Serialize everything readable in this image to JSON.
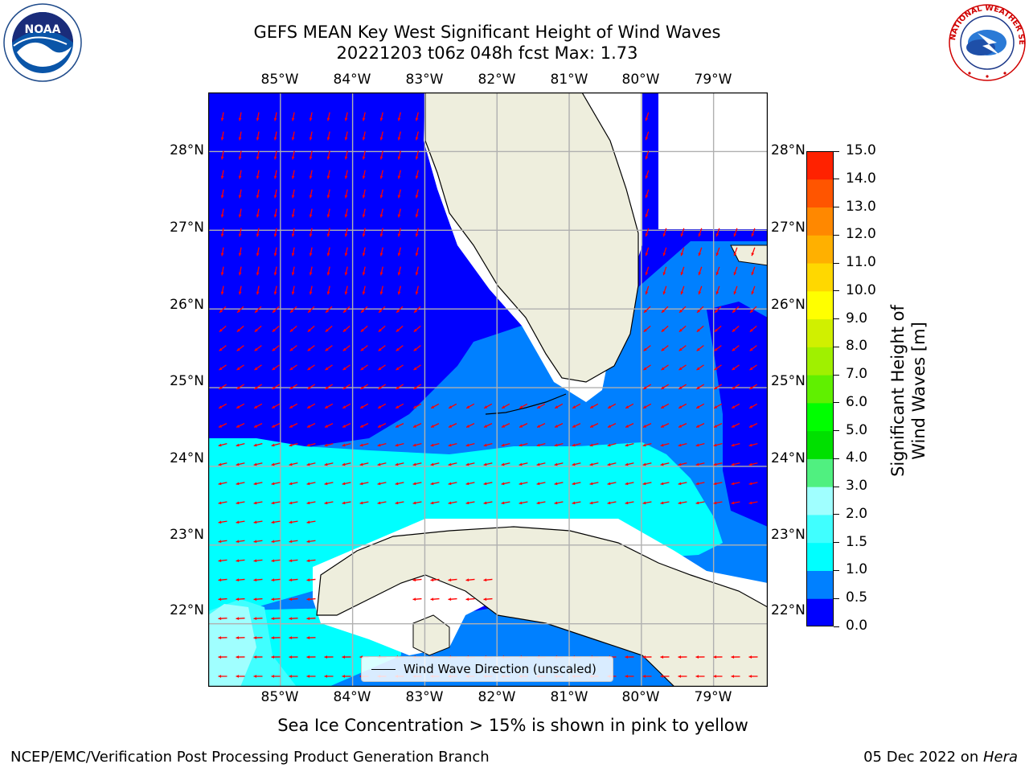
{
  "header": {
    "title_line1": "GEFS MEAN Key West Significant Height of Wind Waves",
    "title_line2": "20221203 t06z 048h fcst   Max: 1.73"
  },
  "logos": {
    "left": {
      "icon": "noaa-logo",
      "text": "NOAA"
    },
    "right": {
      "icon": "nws-logo",
      "text": "NATIONAL WEATHER SERVICE"
    }
  },
  "map": {
    "longitudes": [
      "85°W",
      "84°W",
      "83°W",
      "82°W",
      "81°W",
      "80°W",
      "79°W"
    ],
    "latitudes": [
      "28°N",
      "27°N",
      "26°N",
      "25°N",
      "24°N",
      "23°N",
      "22°N"
    ],
    "extent": {
      "west": -86.0,
      "east": -78.25,
      "south": 21.2,
      "north": 28.75
    },
    "legend_label": "Wind Wave Direction (unscaled)",
    "arrow_color": "#ff0000",
    "land_color": "#eeeedd",
    "grid_color": "#b0b0b0"
  },
  "colorbar": {
    "label": "Significant Height of Wind Waves [m]",
    "ticks": [
      "0.0",
      "0.5",
      "1.0",
      "1.5",
      "2.0",
      "3.0",
      "4.0",
      "5.0",
      "6.0",
      "7.0",
      "8.0",
      "9.0",
      "10.0",
      "11.0",
      "12.0",
      "13.0",
      "14.0",
      "15.0"
    ],
    "colors": [
      "#0000ff",
      "#0080ff",
      "#00ffff",
      "#40ffff",
      "#a0ffff",
      "#50f080",
      "#00e000",
      "#00ff00",
      "#60f000",
      "#a0f000",
      "#d0f000",
      "#ffff00",
      "#ffd800",
      "#ffb000",
      "#ff8800",
      "#ff5500",
      "#ff2200"
    ]
  },
  "caption": "Sea Ice Concentration > 15% is shown in pink to yellow",
  "footer": {
    "left": "NCEP/EMC/Verification Post Processing Product Generation Branch",
    "right_date": "05 Dec 2022 on ",
    "right_host": "Hera"
  }
}
